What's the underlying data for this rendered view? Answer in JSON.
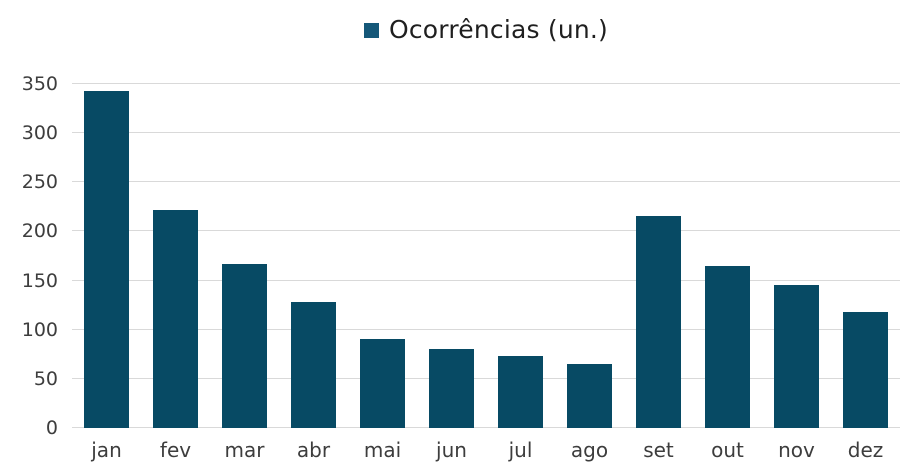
{
  "colors": {
    "bar": "#074a64",
    "legend_marker": "#155879",
    "grid": "#d9d9d9",
    "axis_text": "#3d3d3d",
    "legend_text": "#1f1f1f",
    "background": "#ffffff"
  },
  "chart_data": {
    "type": "bar",
    "title": "",
    "legend": {
      "label": "Ocorrências (un.)",
      "position": "top-center"
    },
    "categories": [
      "jan",
      "fev",
      "mar",
      "abr",
      "mai",
      "jun",
      "jul",
      "ago",
      "set",
      "out",
      "nov",
      "dez"
    ],
    "series": [
      {
        "name": "Ocorrências (un.)",
        "values": [
          343,
          222,
          167,
          128,
          91,
          80,
          73,
          65,
          216,
          165,
          146,
          118
        ]
      }
    ],
    "xlabel": "",
    "ylabel": "",
    "ylim": [
      0,
      350
    ],
    "yticks": [
      0,
      50,
      100,
      150,
      200,
      250,
      300,
      350
    ],
    "grid": "horizontal"
  }
}
